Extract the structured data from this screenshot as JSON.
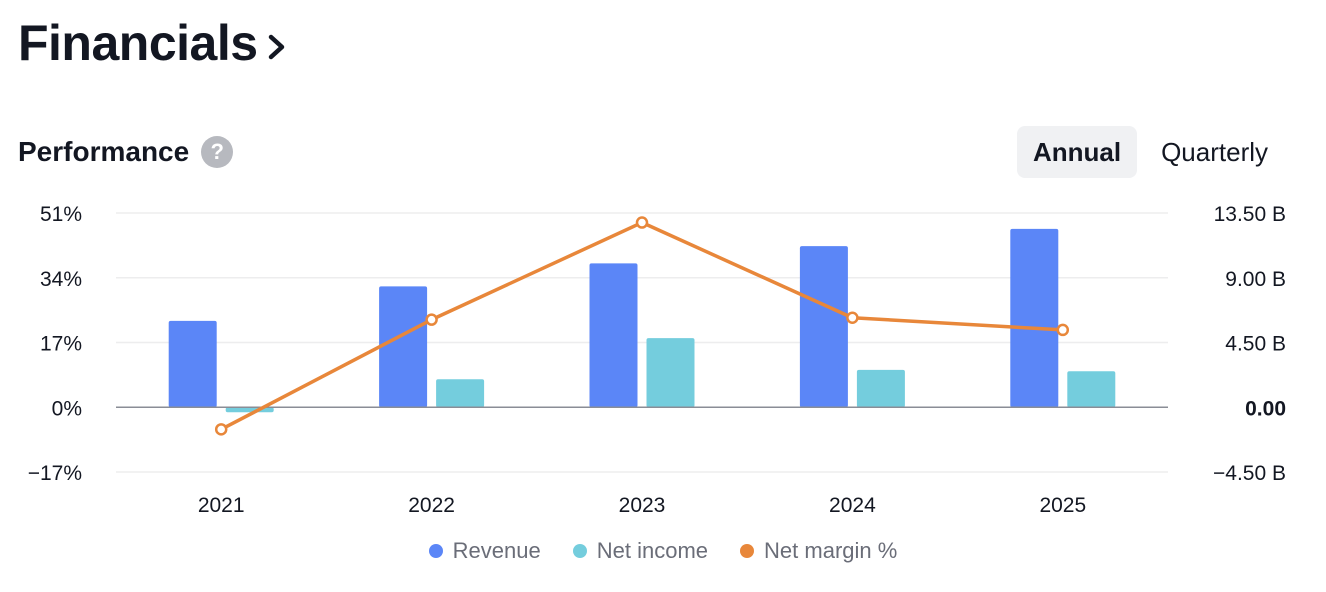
{
  "header": {
    "title": "Financials"
  },
  "section": {
    "title": "Performance",
    "help_icon": "question-circle-icon"
  },
  "tabs": [
    {
      "label": "Annual",
      "active": true
    },
    {
      "label": "Quarterly",
      "active": false
    }
  ],
  "colors": {
    "revenue": "#5B86F7",
    "net_income": "#74CDDD",
    "net_margin": "#E8873A"
  },
  "chart_data": {
    "type": "bar",
    "categories": [
      "2021",
      "2022",
      "2023",
      "2024",
      "2025"
    ],
    "series": [
      {
        "name": "Revenue",
        "axis": "right",
        "values": [
          6.0,
          8.4,
          10.0,
          11.2,
          12.4
        ]
      },
      {
        "name": "Net income",
        "axis": "right",
        "values": [
          -0.35,
          1.95,
          4.8,
          2.6,
          2.5
        ]
      },
      {
        "name": "Net margin %",
        "type": "line",
        "axis": "left",
        "values": [
          -5.8,
          23.0,
          48.5,
          23.5,
          20.3
        ]
      }
    ],
    "left_axis": {
      "ticks": [
        "51%",
        "34%",
        "17%",
        "0%",
        "−17%"
      ],
      "min": -17,
      "max": 51
    },
    "right_axis": {
      "ticks": [
        "13.50 B",
        "9.00 B",
        "4.50 B",
        "0.00",
        "−4.50 B"
      ],
      "min": -4.5,
      "max": 13.5
    },
    "legend_position": "bottom",
    "grid": true
  }
}
